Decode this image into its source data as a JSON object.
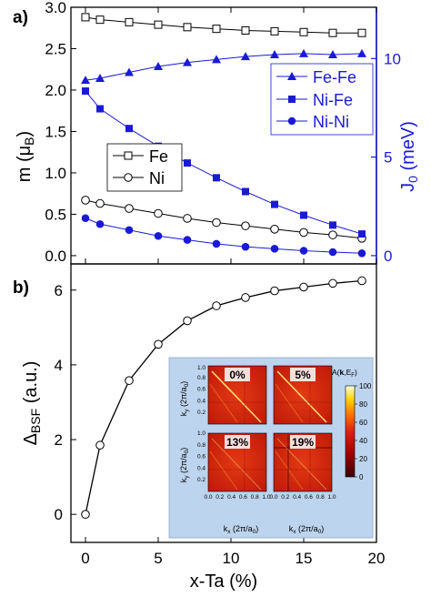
{
  "panel_labels": [
    "a)",
    "b)"
  ],
  "xlabel": "x-Ta (%)",
  "inset": {
    "colorbar_title": "A(k,E_F)",
    "colorbar_ticks": [
      "100",
      "80",
      "60",
      "40",
      "20",
      "0"
    ],
    "maps": [
      {
        "label": "0%"
      },
      {
        "label": "5%"
      },
      {
        "label": "13%"
      },
      {
        "label": "19%"
      }
    ],
    "ky_label": "k_y (2π/a_0)",
    "kx_label": "k_x (2π/a_0)",
    "tick_labels": [
      "0.2",
      "0.4",
      "0.6",
      "0.8",
      "1.0"
    ]
  },
  "chart_data": [
    {
      "type": "line",
      "panel": "a)",
      "ylabel": "m (μB)",
      "y2label": "J0 (meV)",
      "xlim": [
        -1,
        20
      ],
      "ylim": [
        -0.1,
        3.0
      ],
      "y2lim": [
        -0.42,
        12.6
      ],
      "xticks": [
        "0",
        "5",
        "10",
        "15",
        "20"
      ],
      "yticks": [
        "0.0",
        "0.5",
        "1.0",
        "1.5",
        "2.0",
        "2.5",
        "3.0"
      ],
      "y2ticks": [
        "0",
        "5",
        "10"
      ],
      "x": [
        0,
        1,
        3,
        5,
        7,
        9,
        11,
        13,
        15,
        17,
        19
      ],
      "series": [
        {
          "name": "Fe",
          "axis": "left",
          "marker": "square-open",
          "color": "#000000",
          "values": [
            2.88,
            2.85,
            2.82,
            2.79,
            2.76,
            2.74,
            2.72,
            2.71,
            2.7,
            2.69,
            2.69
          ]
        },
        {
          "name": "Ni",
          "axis": "left",
          "marker": "circle-open",
          "color": "#000000",
          "values": [
            0.67,
            0.63,
            0.57,
            0.51,
            0.45,
            0.4,
            0.36,
            0.32,
            0.28,
            0.25,
            0.21
          ]
        },
        {
          "name": "Fe-Fe",
          "axis": "right",
          "marker": "triangle",
          "color": "#1a1ad6",
          "values": [
            8.9,
            9.0,
            9.3,
            9.6,
            9.8,
            9.95,
            10.1,
            10.2,
            10.25,
            10.2,
            10.25
          ]
        },
        {
          "name": "Ni-Fe",
          "axis": "right",
          "marker": "square",
          "color": "#1a1ad6",
          "values": [
            8.35,
            7.45,
            6.45,
            5.55,
            4.7,
            3.95,
            3.25,
            2.6,
            2.05,
            1.55,
            1.1
          ]
        },
        {
          "name": "Ni-Ni",
          "axis": "right",
          "marker": "circle",
          "color": "#1a1ad6",
          "values": [
            1.9,
            1.6,
            1.3,
            1.0,
            0.8,
            0.6,
            0.45,
            0.35,
            0.25,
            0.18,
            0.12
          ]
        }
      ],
      "legends": [
        {
          "placement": "center-left",
          "entries": [
            "Fe",
            "Ni"
          ]
        },
        {
          "placement": "center-right",
          "entries": [
            "Fe-Fe",
            "Ni-Fe",
            "Ni-Ni"
          ]
        }
      ]
    },
    {
      "type": "line",
      "panel": "b)",
      "ylabel": "ΔBSF (a.u.)",
      "xlim": [
        -1,
        20
      ],
      "ylim": [
        -0.75,
        6.7
      ],
      "xticks": [
        "0",
        "5",
        "10",
        "15",
        "20"
      ],
      "yticks": [
        "0",
        "2",
        "4",
        "6"
      ],
      "x": [
        0,
        1,
        3,
        5,
        7,
        9,
        11,
        13,
        15,
        17,
        19
      ],
      "series": [
        {
          "marker": "circle-open",
          "color": "#000000",
          "values": [
            0.0,
            1.85,
            3.58,
            4.55,
            5.18,
            5.58,
            5.8,
            5.98,
            6.08,
            6.18,
            6.25
          ]
        }
      ]
    }
  ]
}
